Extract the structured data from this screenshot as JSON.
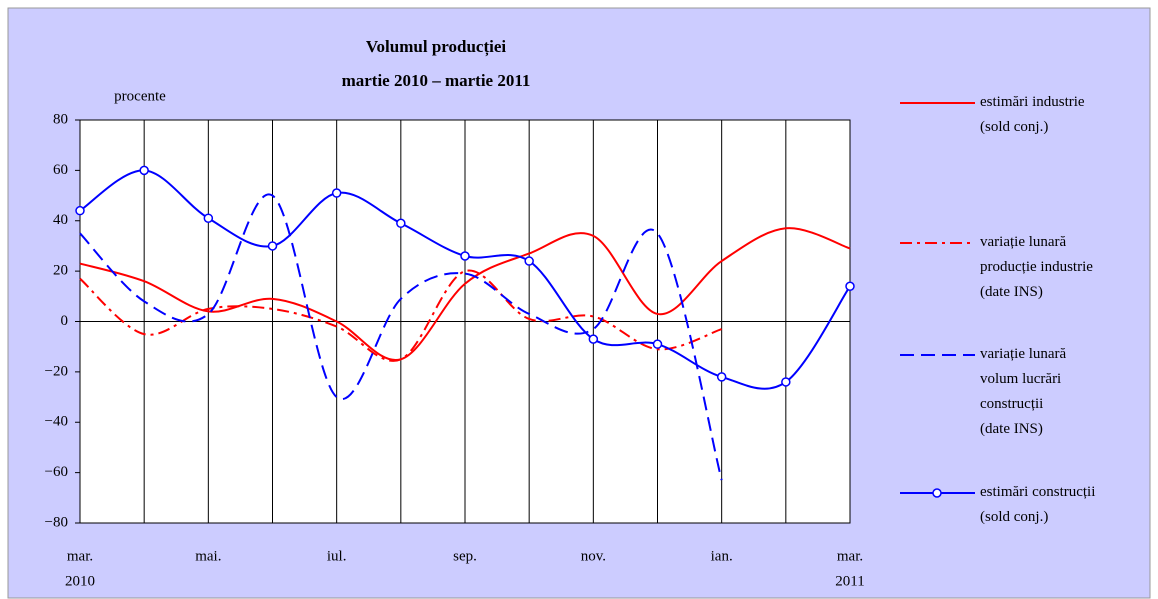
{
  "chart_data": {
    "type": "line",
    "title": "Volumul producției\nmartie 2010 – martie 2011",
    "y_label": "procente",
    "categories": [
      "mar.",
      null,
      "mai.",
      null,
      "iul.",
      null,
      "sep.",
      null,
      "nov.",
      null,
      "ian.",
      null,
      "mar."
    ],
    "x_sublabels": [
      "2010",
      null,
      null,
      null,
      null,
      null,
      null,
      null,
      null,
      null,
      null,
      null,
      "2011"
    ],
    "ylim": [
      -80,
      80
    ],
    "yticks": [
      {
        "value": -80,
        "label": "−80"
      },
      {
        "value": -60,
        "label": "−60"
      },
      {
        "value": -40,
        "label": "−40"
      },
      {
        "value": -20,
        "label": "−20"
      },
      0,
      20,
      40,
      60,
      80
    ],
    "grid": true,
    "legend": "right",
    "series": [
      {
        "name": "estimări industrie\n(sold conj.)",
        "color": "#ff0000",
        "dash": "solid",
        "markers": false,
        "values": [
          23,
          16,
          4,
          9,
          0,
          -15,
          15,
          27,
          34,
          3,
          24,
          37,
          29
        ]
      },
      {
        "name": "variație lunară\nproducție industrie\n(date INS)",
        "color": "#ff0000",
        "dash": "dashdot",
        "markers": false,
        "values": [
          17,
          -5,
          5,
          5,
          -2,
          -15,
          20,
          1,
          2,
          -11,
          -3,
          null,
          null
        ]
      },
      {
        "name": "variație lunară\nvolum lucrări\nconstrucții\n(date INS)",
        "color": "#0000ff",
        "dash": "dash",
        "markers": false,
        "values": [
          35,
          8,
          3,
          50,
          -30,
          9,
          19,
          3,
          -3,
          35,
          -63,
          null,
          null
        ]
      },
      {
        "name": "estimări construcții\n(sold conj.)",
        "color": "#0000ff",
        "dash": "solid",
        "markers": true,
        "values": [
          44,
          60,
          41,
          30,
          51,
          39,
          26,
          24,
          -7,
          -9,
          -22,
          -24,
          14
        ]
      }
    ]
  }
}
